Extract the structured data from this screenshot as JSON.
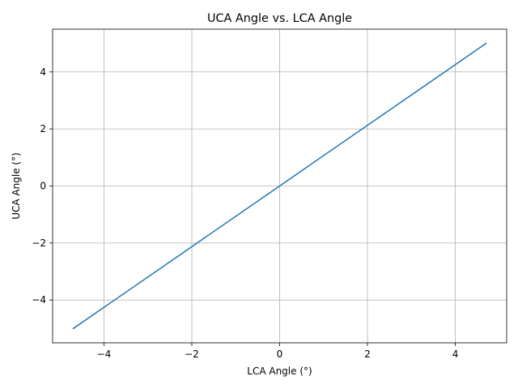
{
  "chart_data": {
    "type": "line",
    "title": "UCA Angle vs. LCA Angle",
    "xlabel": "LCA Angle (°)",
    "ylabel": "UCA Angle (°)",
    "xlim": [
      -5.17,
      5.17
    ],
    "ylim": [
      -5.5,
      5.5
    ],
    "xticks": [
      -4,
      -2,
      0,
      2,
      4
    ],
    "yticks": [
      -4,
      -2,
      0,
      2,
      4
    ],
    "xtick_labels": [
      "−4",
      "−2",
      "0",
      "2",
      "4"
    ],
    "ytick_labels": [
      "−4",
      "−2",
      "0",
      "2",
      "4"
    ],
    "grid": true,
    "series": [
      {
        "color": "#1f77b4",
        "x": [
          -4.7,
          -2.35,
          0,
          2.35,
          4.7
        ],
        "y": [
          -5.0,
          -2.5,
          0,
          2.5,
          5.0
        ]
      }
    ]
  }
}
